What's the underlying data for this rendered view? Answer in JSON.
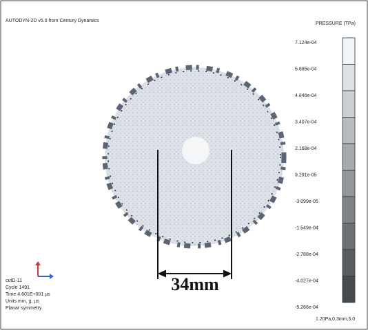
{
  "header": {
    "title": "AUTODYN-2D v5.0 from Century Dynamics"
  },
  "legend": {
    "title": "PRESSURE (TPa)",
    "labels": [
      "7.124e-04",
      "5.885e-04",
      "4.846e-04",
      "3.407e-04",
      "2.168e-04",
      "9.291e-05",
      "-3.099e-05",
      "-1.549e-04",
      "-2.788e-04",
      "-4.027e-04",
      "-5.266e-04"
    ]
  },
  "info": [
    "cutD-11",
    "Cycle 1491",
    "Time 4.601E+001 µs",
    "Units mm, g, µs",
    "Planar symmetry"
  ],
  "annotation": "34mm",
  "footer": "1.20Pa,0.3mm,5.0"
}
